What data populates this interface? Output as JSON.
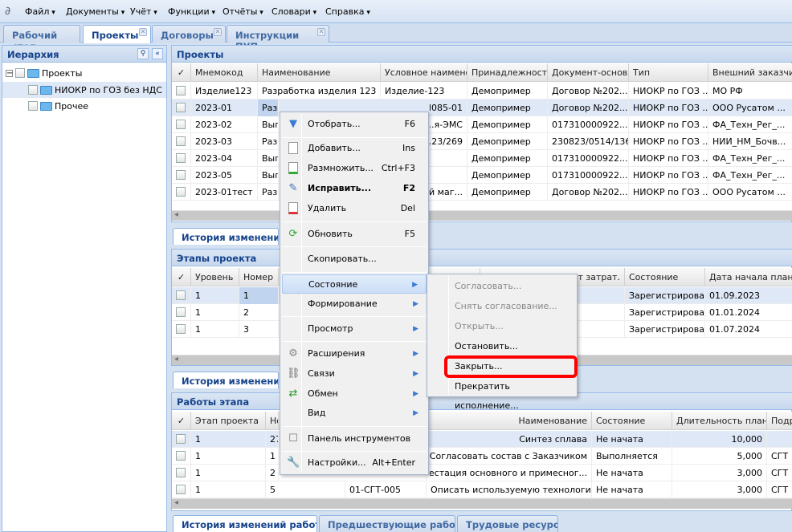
{
  "menubar": {
    "items": [
      "Файл",
      "Документы",
      "Учёт",
      "Функции",
      "Отчёты",
      "Словари",
      "Справка"
    ]
  },
  "tabs": [
    "Рабочий стол",
    "Проекты",
    "Договоры",
    "Инструкции ПУП"
  ],
  "hierarchy": {
    "title": "Иерархия",
    "root": "Проекты",
    "children": [
      "НИОКР по ГОЗ без НДС",
      "Прочее"
    ]
  },
  "projects": {
    "title": "Проекты",
    "columns": [
      "✓",
      "Мнемокод",
      "Наименование",
      "Условное наименова",
      "Принадлежность",
      "Документ-основан",
      "Тип",
      "Внешний заказчик"
    ],
    "rows": [
      [
        "",
        "Изделие123",
        "Разработка изделия 123",
        "Изделие-123",
        "Демопример",
        "Договор №202...",
        "НИОКР по ГОЗ ...",
        "МО РФ"
      ],
      [
        "",
        "2023-01",
        "Разработка технологии и ...",
        "Магнит ПМ085-01",
        "Демопример",
        "Договор №202...",
        "НИОКР по ГОЗ ...",
        "ООО Русатом ..."
      ],
      [
        "",
        "2023-02",
        "Выполнение ...",
        "...я-ЭМС",
        "Демопример",
        "017310000922...",
        "НИОКР по ГОЗ ...",
        "ФА_Техн_Рег_..."
      ],
      [
        "",
        "2023-03",
        "Разработка ...",
        "...23/269",
        "Демопример",
        "230823/0514/136",
        "НИОКР по ГОЗ ...",
        "НИИ_НМ_Бочв..."
      ],
      [
        "",
        "2023-04",
        "Выполнение ...",
        "",
        "Демопример",
        "017310000922...",
        "НИОКР по ГОЗ ...",
        "ФА_Техн_Рег_..."
      ],
      [
        "",
        "2023-05",
        "Выполнение ...",
        "",
        "Демопример",
        "017310000922...",
        "НИОКР по ГОЗ ...",
        "ФА_Техн_Рег_..."
      ],
      [
        "",
        "2023-01тест",
        "Разработка ...",
        "...й маг...",
        "Демопример",
        "Договор №202...",
        "НИОКР по ГОЗ ...",
        "ООО Русатом ..."
      ]
    ]
  },
  "history_tab1": "История изменений п...",
  "stages": {
    "title": "Этапы проекта",
    "columns": [
      "✓",
      "Уровень",
      "Номер",
      "",
      "",
      "...счёт затрат.",
      "Состояние",
      "Дата начала план"
    ],
    "rows": [
      [
        "",
        "1",
        "1",
        "",
        "",
        "",
        "Зарегистрирован",
        "01.09.2023"
      ],
      [
        "",
        "1",
        "2",
        "",
        "",
        "",
        "Зарегистрирован",
        "01.01.2024"
      ],
      [
        "",
        "1",
        "3",
        "",
        "",
        "",
        "Зарегистрирован",
        "01.07.2024"
      ]
    ]
  },
  "history_tab2": "История изменений э...",
  "works": {
    "title": "Работы этапа",
    "columns": [
      "✓",
      "Этап проекта",
      "Но...",
      "",
      "Наименование",
      "Состояние",
      "Длительность план ▾",
      "Подр"
    ],
    "rows": [
      [
        "",
        "1",
        "27",
        "",
        "Синтез сплава",
        "Не начата",
        "10,000",
        ""
      ],
      [
        "",
        "1",
        "1",
        "",
        "Согласовать состав с Заказчиком",
        "Выполняется",
        "5,000",
        "СГТ"
      ],
      [
        "",
        "1",
        "2",
        "",
        "Аттестация основного и примесног...",
        "Не начата",
        "3,000",
        "СГТ"
      ],
      [
        "",
        "1",
        "5",
        "01-СГТ-005",
        "Описать используемую технологию",
        "Не начата",
        "3,000",
        "СГТ"
      ]
    ]
  },
  "bottom_tabs": [
    "История изменений работы",
    "Предшествующие работы",
    "Трудовые ресурсы"
  ],
  "context_menu": {
    "items": [
      {
        "label": "Отобрать...",
        "shortcut": "F6",
        "icon": "filter-icon"
      },
      {
        "label": "Добавить...",
        "shortcut": "Ins",
        "icon": "document-icon"
      },
      {
        "label": "Размножить...",
        "shortcut": "Ctrl+F3",
        "icon": "document-add-icon"
      },
      {
        "label": "Исправить...",
        "shortcut": "F2",
        "icon": "edit-icon"
      },
      {
        "label": "Удалить",
        "shortcut": "Del",
        "icon": "document-delete-icon"
      },
      {
        "label": "Обновить",
        "shortcut": "F5",
        "icon": "refresh-icon"
      },
      {
        "label": "Скопировать...",
        "shortcut": ""
      },
      {
        "label": "Состояние",
        "shortcut": ""
      },
      {
        "label": "Формирование",
        "shortcut": ""
      },
      {
        "label": "Просмотр",
        "shortcut": ""
      },
      {
        "label": "Расширения",
        "shortcut": "",
        "icon": "extensions-icon"
      },
      {
        "label": "Связи",
        "shortcut": "",
        "icon": "links-icon"
      },
      {
        "label": "Обмен",
        "shortcut": "",
        "icon": "exchange-icon"
      },
      {
        "label": "Вид",
        "shortcut": ""
      },
      {
        "label": "Панель инструментов",
        "shortcut": "",
        "icon": "checkbox-icon"
      },
      {
        "label": "Настройки...",
        "shortcut": "Alt+Enter",
        "icon": "wrench-icon"
      }
    ]
  },
  "submenu": {
    "items": [
      {
        "label": "Согласовать...",
        "disabled": true
      },
      {
        "label": "Снять согласование...",
        "disabled": true
      },
      {
        "label": "Открыть...",
        "disabled": true
      },
      {
        "label": "Остановить...",
        "disabled": false
      },
      {
        "label": "Закрыть...",
        "disabled": false,
        "highlighted_box": true
      },
      {
        "label": "Прекратить исполнение...",
        "disabled": false
      }
    ]
  },
  "colors": {
    "accent": "#15428b",
    "highlight_box": "#ff0000",
    "selection": "#dfe8f6"
  }
}
